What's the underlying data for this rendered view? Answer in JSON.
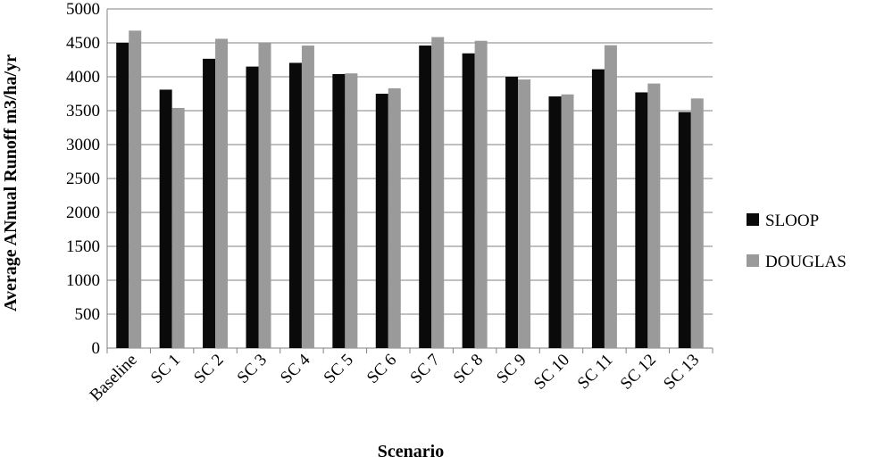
{
  "chart_data": {
    "type": "bar",
    "title": "",
    "xlabel": "Scenario",
    "ylabel": "Average ANnual Runoff m3/ha/yr",
    "ylim": [
      0,
      5000
    ],
    "yticks": [
      "0",
      "500",
      "1000",
      "1500",
      "2000",
      "2500",
      "3000",
      "3500",
      "4000",
      "4500",
      "5000"
    ],
    "grid": "horizontal",
    "legend_position": "right",
    "categories": [
      "Baseline",
      "SC 1",
      "SC 2",
      "SC 3",
      "SC 4",
      "SC 5",
      "SC 6",
      "SC 7",
      "SC 8",
      "SC 9",
      "SC 10",
      "SC 11",
      "SC 12",
      "SC 13"
    ],
    "series": [
      {
        "name": "SLOOP",
        "color": "#0a0a0a",
        "values": [
          4500,
          3810,
          4265,
          4150,
          4205,
          4040,
          3750,
          4460,
          4345,
          4000,
          3710,
          4110,
          3770,
          3480
        ]
      },
      {
        "name": "DOUGLAS",
        "color": "#9a9a9a",
        "values": [
          4680,
          3540,
          4560,
          4500,
          4460,
          4050,
          3830,
          4585,
          4530,
          3960,
          3740,
          4465,
          3900,
          3680
        ]
      }
    ]
  }
}
